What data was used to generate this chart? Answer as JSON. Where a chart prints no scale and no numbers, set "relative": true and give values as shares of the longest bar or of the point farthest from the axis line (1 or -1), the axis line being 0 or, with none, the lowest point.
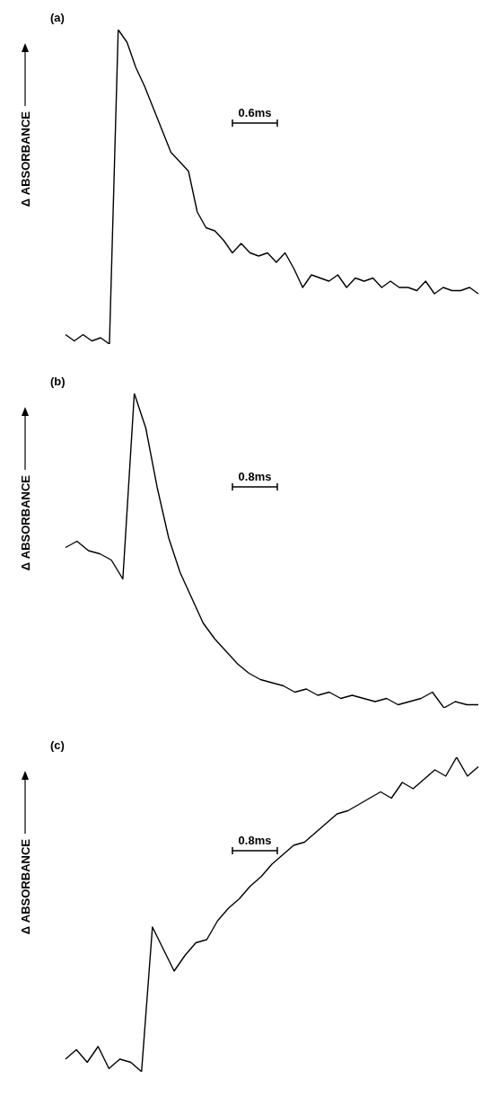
{
  "chart_data": [
    {
      "type": "line",
      "ylabel": "Δ ABSORBANCE",
      "annotations": [
        "(a)",
        "0.6ms"
      ],
      "relative": true,
      "tick_labels": false,
      "categories": [
        null,
        null,
        null,
        null,
        null,
        null,
        null,
        null,
        null,
        null,
        null,
        null,
        null,
        null,
        null,
        null,
        null,
        null,
        null,
        null,
        null,
        null,
        null,
        null,
        null,
        null,
        null,
        null,
        null,
        null,
        null,
        null,
        null,
        null,
        null,
        null,
        null,
        null,
        null,
        null,
        null,
        null,
        null,
        null,
        null,
        null,
        null,
        null
      ],
      "series": [
        {
          "color": "#000000",
          "values": [
            0.03,
            0.01,
            0.03,
            0.01,
            0.02,
            0,
            1,
            0.96,
            0.88,
            0.82,
            0.75,
            0.68,
            0.61,
            0.58,
            0.55,
            0.42,
            0.37,
            0.36,
            0.33,
            0.29,
            0.32,
            0.29,
            0.28,
            0.29,
            0.26,
            0.29,
            0.24,
            0.18,
            0.22,
            0.21,
            0.2,
            0.22,
            0.18,
            0.21,
            0.2,
            0.21,
            0.18,
            0.2,
            0.18,
            0.18,
            0.17,
            0.2,
            0.16,
            0.18,
            0.17,
            0.17,
            0.18,
            0.16
          ]
        }
      ]
    },
    {
      "type": "line",
      "ylabel": "Δ ABSORBANCE",
      "annotations": [
        "(b)",
        "0.8ms"
      ],
      "relative": true,
      "tick_labels": false,
      "categories": [
        null,
        null,
        null,
        null,
        null,
        null,
        null,
        null,
        null,
        null,
        null,
        null,
        null,
        null,
        null,
        null,
        null,
        null,
        null,
        null,
        null,
        null,
        null,
        null,
        null,
        null,
        null,
        null,
        null,
        null,
        null,
        null,
        null,
        null,
        null,
        null,
        null
      ],
      "series": [
        {
          "color": "#000000",
          "values": [
            0.51,
            0.53,
            0.5,
            0.49,
            0.47,
            0.41,
            1,
            0.89,
            0.7,
            0.54,
            0.43,
            0.35,
            0.27,
            0.22,
            0.18,
            0.14,
            0.11,
            0.09,
            0.08,
            0.07,
            0.05,
            0.06,
            0.04,
            0.05,
            0.03,
            0.04,
            0.03,
            0.02,
            0.03,
            0.01,
            0.02,
            0.03,
            0.05,
            0,
            0.02,
            0.01,
            0.01
          ]
        }
      ]
    },
    {
      "type": "line",
      "ylabel": "Δ ABSORBANCE",
      "annotations": [
        "(c)",
        "0.8ms"
      ],
      "relative": true,
      "tick_labels": false,
      "categories": [
        null,
        null,
        null,
        null,
        null,
        null,
        null,
        null,
        null,
        null,
        null,
        null,
        null,
        null,
        null,
        null,
        null,
        null,
        null,
        null,
        null,
        null,
        null,
        null,
        null,
        null,
        null,
        null,
        null,
        null,
        null,
        null,
        null,
        null,
        null,
        null,
        null,
        null,
        null
      ],
      "series": [
        {
          "color": "#000000",
          "values": [
            0.04,
            0.07,
            0.03,
            0.08,
            0.01,
            0.04,
            0.03,
            0,
            0.46,
            0.39,
            0.32,
            0.37,
            0.41,
            0.42,
            0.48,
            0.52,
            0.55,
            0.59,
            0.62,
            0.66,
            0.69,
            0.72,
            0.73,
            0.76,
            0.79,
            0.82,
            0.83,
            0.85,
            0.87,
            0.89,
            0.87,
            0.92,
            0.9,
            0.93,
            0.96,
            0.94,
            1,
            0.94,
            0.97
          ]
        }
      ]
    }
  ]
}
